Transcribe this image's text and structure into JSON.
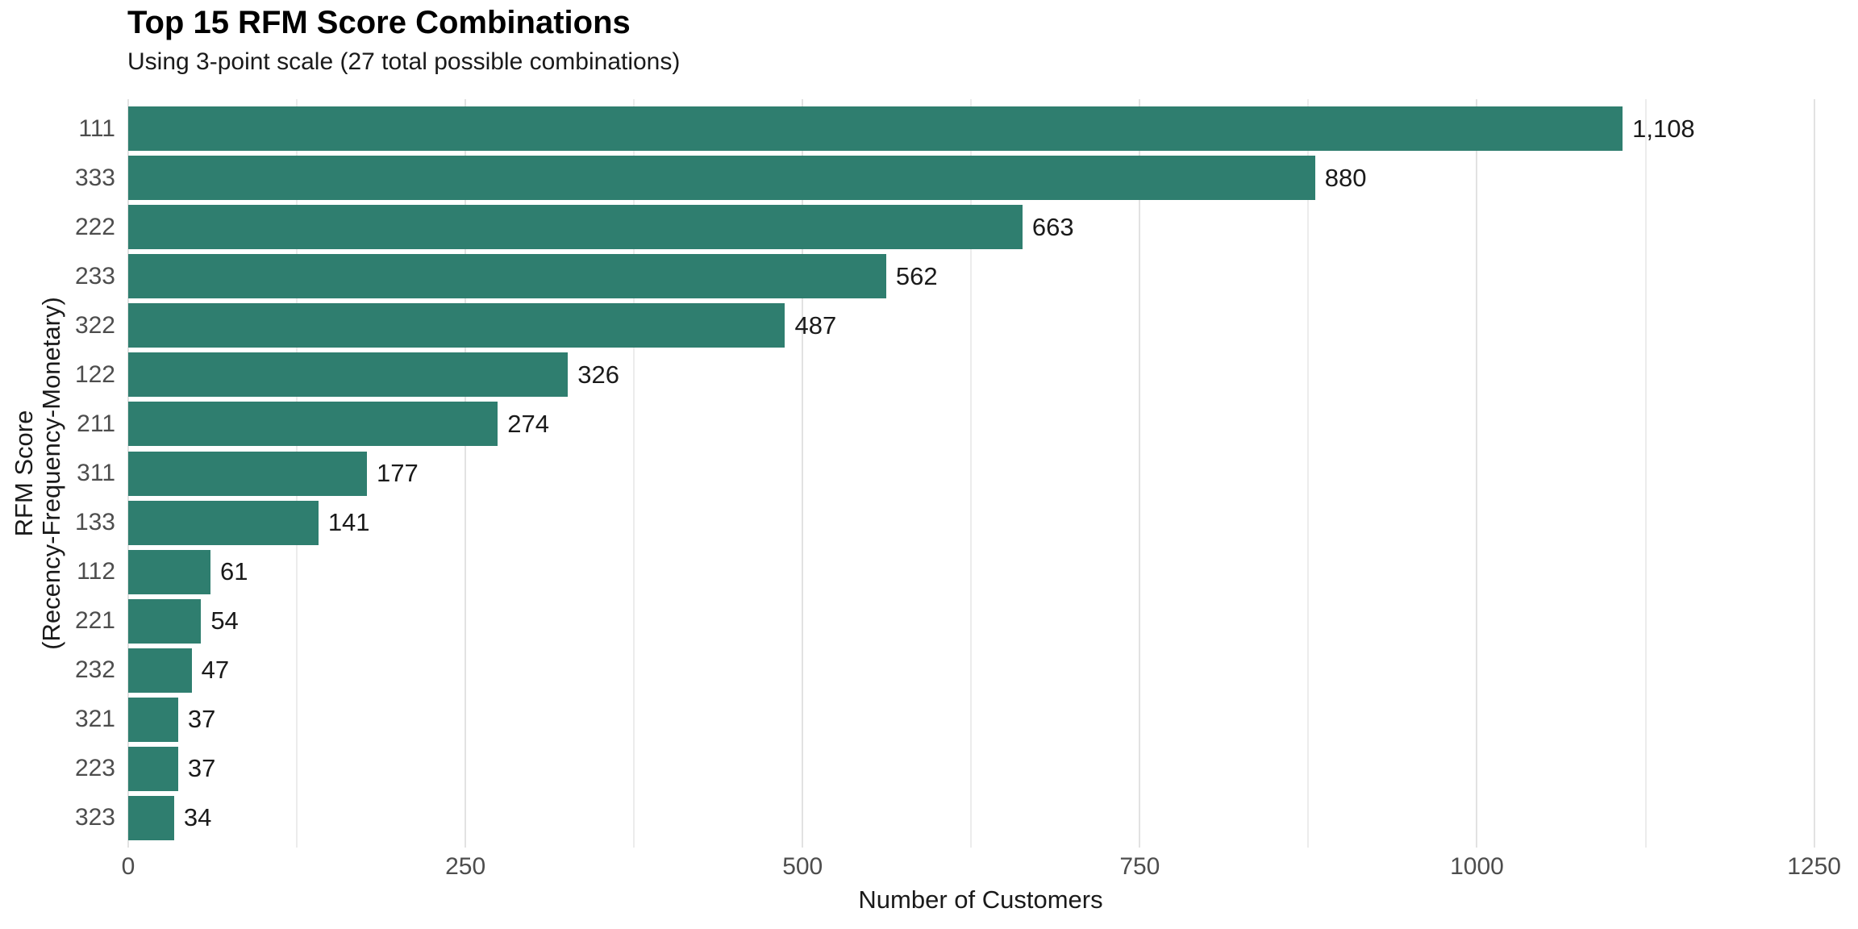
{
  "header": {
    "title": "Top 15 RFM Score Combinations",
    "subtitle": "Using 3-point scale (27 total possible combinations)"
  },
  "chart_data": {
    "type": "bar",
    "orientation": "horizontal",
    "title": "Top 15 RFM Score Combinations",
    "subtitle": "Using 3-point scale (27 total possible combinations)",
    "categories": [
      "111",
      "333",
      "222",
      "233",
      "322",
      "122",
      "211",
      "311",
      "133",
      "112",
      "221",
      "232",
      "321",
      "223",
      "323"
    ],
    "values": [
      1108,
      880,
      663,
      562,
      487,
      326,
      274,
      177,
      141,
      61,
      54,
      47,
      37,
      37,
      34
    ],
    "value_labels": [
      "1,108",
      "880",
      "663",
      "562",
      "487",
      "326",
      "274",
      "177",
      "141",
      "61",
      "54",
      "47",
      "37",
      "37",
      "34"
    ],
    "xlabel": "Number of Customers",
    "ylabel_line1": "RFM Score",
    "ylabel_line2": "(Recency-Frequency-Monetary)",
    "x_ticks": [
      0,
      250,
      500,
      750,
      1000,
      1250
    ],
    "x_tick_labels": [
      "0",
      "250",
      "500",
      "750",
      "1000",
      "1250"
    ],
    "xlim": [
      0,
      1264
    ],
    "gridline_minor_step": 125,
    "gridline_major_step": 250,
    "grid": true,
    "legend": false,
    "bar_color": "#2f7e6f",
    "background_color": "#ffffff",
    "gridline_minor_color": "#ececec",
    "gridline_major_color": "#e2e2e2",
    "axis_text_color": "#4d4d4d",
    "text_color": "#1a1a1a"
  }
}
